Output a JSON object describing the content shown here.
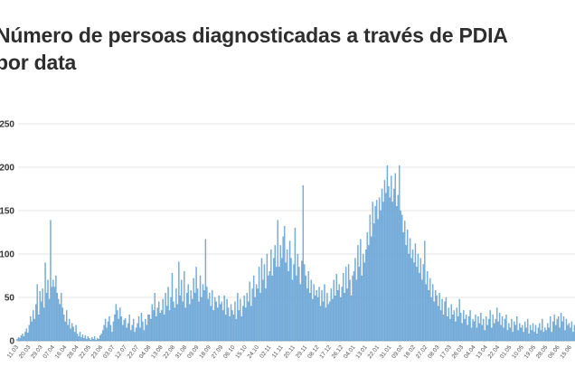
{
  "title": {
    "line1": "Número de persoas diagnosticadas a través de PDIA",
    "line2": "por data",
    "full": "Número de persoas diagnosticadas a través de PDIA por data"
  },
  "colors": {
    "bar_fill": "#7fb5e0",
    "bar_stroke": "#4d8fc7",
    "grid_line": "#e6e6e6",
    "axis_line": "#b3b3b3",
    "title_text": "#2e2e2e",
    "y_label_text": "#333333",
    "x_label_text": "#4a4a4a",
    "background": "#ffffff"
  },
  "chart_data": {
    "type": "bar",
    "title": "Número de persoas diagnosticadas a través de PDIA por data",
    "xlabel": "",
    "ylabel": "",
    "ylim": [
      0,
      250
    ],
    "yticks": [
      0,
      50,
      100,
      150,
      200,
      250
    ],
    "grid": "horizontal",
    "legend": "none",
    "tick_every_n_bars": 9,
    "x_tick_labels": [
      "11.03",
      "20.03",
      "29.03",
      "07.04",
      "16.04",
      "28.04",
      "22.05",
      "23.06",
      "03.07",
      "12.07",
      "22.07",
      "04.08",
      "13.08",
      "22.08",
      "31.08",
      "09.09",
      "18.09",
      "27.09",
      "06.10",
      "15.10",
      "24.10",
      "02.11",
      "11.11",
      "20.11",
      "29.11",
      "08.12",
      "17.12",
      "26.12",
      "04.01",
      "13.01",
      "22.01",
      "31.01",
      "09.02",
      "18.02",
      "27.02",
      "08.03",
      "17.03",
      "26.03",
      "04.04",
      "13.04",
      "22.04",
      "01.05",
      "10.05",
      "19.05",
      "28.05",
      "06.06",
      "15.06"
    ],
    "values": [
      2,
      4,
      3,
      6,
      8,
      5,
      10,
      14,
      9,
      18,
      28,
      22,
      35,
      25,
      42,
      65,
      30,
      57,
      45,
      60,
      38,
      90,
      55,
      70,
      48,
      139,
      62,
      70,
      62,
      75,
      55,
      48,
      42,
      55,
      38,
      30,
      22,
      35,
      18,
      25,
      14,
      20,
      16,
      10,
      18,
      8,
      5,
      10,
      4,
      7,
      3,
      6,
      2,
      5,
      3,
      1,
      4,
      2,
      5,
      1,
      3,
      2,
      6,
      8,
      12,
      18,
      25,
      15,
      22,
      28,
      18,
      10,
      22,
      30,
      42,
      35,
      25,
      38,
      28,
      18,
      24,
      26,
      15,
      20,
      30,
      12,
      18,
      25,
      10,
      15,
      20,
      28,
      15,
      32,
      22,
      12,
      25,
      18,
      30,
      30,
      25,
      42,
      35,
      55,
      28,
      38,
      45,
      32,
      35,
      48,
      30,
      55,
      40,
      62,
      35,
      50,
      78,
      45,
      38,
      60,
      42,
      91,
      52,
      70,
      45,
      80,
      38,
      55,
      65,
      42,
      58,
      48,
      72,
      55,
      85,
      60,
      45,
      75,
      50,
      65,
      58,
      117,
      62,
      48,
      55,
      40,
      58,
      35,
      50,
      45,
      38,
      52,
      42,
      45,
      35,
      52,
      30,
      48,
      38,
      28,
      42,
      35,
      30,
      45,
      25,
      55,
      35,
      48,
      28,
      40,
      52,
      38,
      55,
      45,
      68,
      40,
      60,
      75,
      50,
      65,
      60,
      85,
      55,
      95,
      70,
      88,
      60,
      100,
      75,
      80,
      105,
      75,
      95,
      110,
      85,
      139,
      85,
      110,
      95,
      120,
      132,
      90,
      105,
      80,
      115,
      95,
      70,
      88,
      130,
      75,
      100,
      85,
      65,
      92,
      179,
      88,
      75,
      60,
      80,
      55,
      70,
      48,
      65,
      52,
      58,
      50,
      62,
      40,
      58,
      45,
      65,
      38,
      55,
      42,
      45,
      60,
      48,
      70,
      52,
      77,
      58,
      65,
      50,
      62,
      78,
      55,
      85,
      60,
      88,
      70,
      52,
      75,
      80,
      95,
      70,
      110,
      85,
      117,
      75,
      100,
      90,
      105,
      125,
      110,
      145,
      120,
      160,
      135,
      155,
      162,
      140,
      165,
      150,
      175,
      160,
      185,
      170,
      202,
      178,
      165,
      190,
      160,
      175,
      193,
      155,
      168,
      202,
      150,
      145,
      125,
      138,
      110,
      128,
      100,
      118,
      95,
      105,
      90,
      112,
      85,
      100,
      78,
      95,
      70,
      88,
      115,
      65,
      80,
      58,
      72,
      50,
      65,
      45,
      58,
      52,
      40,
      55,
      35,
      48,
      30,
      45,
      50,
      28,
      38,
      25,
      42,
      30,
      35,
      22,
      38,
      28,
      48,
      32,
      20,
      35,
      25,
      30,
      18,
      28,
      35,
      15,
      25,
      22,
      30,
      15,
      28,
      20,
      32,
      18,
      25,
      12,
      28,
      18,
      25,
      35,
      15,
      30,
      20,
      25,
      38,
      22,
      32,
      18,
      28,
      15,
      25,
      30,
      12,
      20,
      15,
      25,
      10,
      22,
      18,
      28,
      12,
      20,
      15,
      18,
      10,
      22,
      15,
      25,
      8,
      18,
      12,
      20,
      10,
      18,
      8,
      15,
      20,
      12,
      25,
      10,
      15,
      12,
      20,
      15,
      28,
      10,
      22,
      30,
      18,
      25,
      28,
      15,
      32,
      22,
      28,
      12,
      25,
      18,
      20,
      15,
      22,
      10,
      18
    ]
  }
}
